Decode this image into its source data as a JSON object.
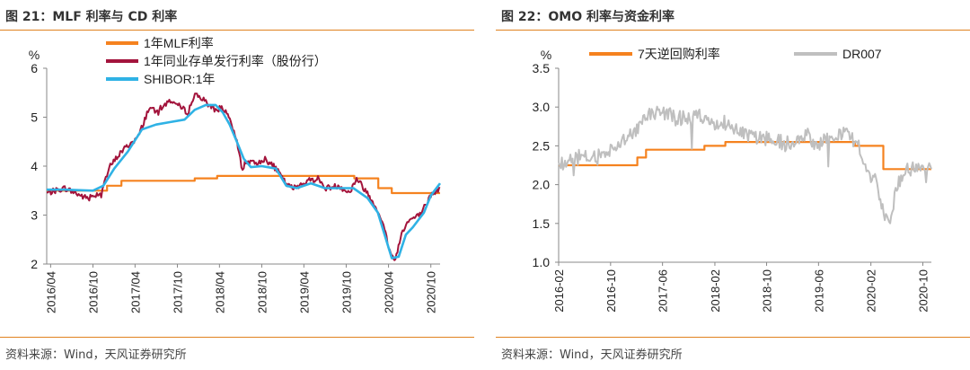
{
  "figures": [
    {
      "title": "图 21：MLF 利率与 CD 利率",
      "source": "资料来源：Wind，天风证券研究所",
      "chart_data": {
        "type": "line",
        "ylabel": "%",
        "ylim": [
          2,
          6
        ],
        "yticks": [
          2,
          3,
          4,
          5,
          6
        ],
        "x_dates": [
          "2016/04",
          "2016/10",
          "2017/04",
          "2017/10",
          "2018/04",
          "2018/10",
          "2019/04",
          "2019/10",
          "2020/04",
          "2020/10"
        ],
        "x_range": [
          "2016-03-15",
          "2020-11-10"
        ],
        "legend_position": "top",
        "series": [
          {
            "name": "1年MLF利率",
            "color": "#F5821F",
            "kind": "step",
            "points": [
              [
                "2016-03-15",
                3.5
              ],
              [
                "2016-12-01",
                3.5
              ],
              [
                "2016-12-01",
                3.6
              ],
              [
                "2017-02-01",
                3.6
              ],
              [
                "2017-02-01",
                3.7
              ],
              [
                "2017-12-15",
                3.7
              ],
              [
                "2017-12-15",
                3.75
              ],
              [
                "2018-03-22",
                3.75
              ],
              [
                "2018-03-22",
                3.8
              ],
              [
                "2019-11-05",
                3.8
              ],
              [
                "2019-11-05",
                3.75
              ],
              [
                "2020-02-17",
                3.75
              ],
              [
                "2020-02-17",
                3.55
              ],
              [
                "2020-04-15",
                3.55
              ],
              [
                "2020-04-15",
                3.45
              ],
              [
                "2020-11-10",
                3.45
              ]
            ]
          },
          {
            "name": "1年同业存单发行利率（股份行）",
            "color": "#A3143C",
            "kind": "noisy",
            "points": [
              [
                "2016-03-15",
                3.45
              ],
              [
                "2016-06-01",
                3.55
              ],
              [
                "2016-09-01",
                3.35
              ],
              [
                "2016-11-01",
                3.45
              ],
              [
                "2016-12-15",
                4.0
              ],
              [
                "2017-02-01",
                4.3
              ],
              [
                "2017-04-15",
                4.6
              ],
              [
                "2017-06-01",
                5.2
              ],
              [
                "2017-07-01",
                5.1
              ],
              [
                "2017-09-01",
                5.35
              ],
              [
                "2017-11-15",
                5.1
              ],
              [
                "2017-12-20",
                5.5
              ],
              [
                "2018-02-01",
                5.3
              ],
              [
                "2018-03-15",
                5.15
              ],
              [
                "2018-04-15",
                5.2
              ],
              [
                "2018-05-20",
                4.9
              ],
              [
                "2018-06-20",
                4.4
              ],
              [
                "2018-07-10",
                3.9
              ],
              [
                "2018-07-20",
                4.1
              ],
              [
                "2018-09-01",
                4.05
              ],
              [
                "2018-10-15",
                4.15
              ],
              [
                "2018-12-01",
                3.95
              ],
              [
                "2019-01-20",
                3.6
              ],
              [
                "2019-02-15",
                3.55
              ],
              [
                "2019-04-15",
                3.7
              ],
              [
                "2019-06-01",
                3.75
              ],
              [
                "2019-07-01",
                3.55
              ],
              [
                "2019-09-01",
                3.6
              ],
              [
                "2019-10-15",
                3.45
              ],
              [
                "2019-11-15",
                3.75
              ],
              [
                "2020-01-01",
                3.45
              ],
              [
                "2020-02-15",
                3.1
              ],
              [
                "2020-03-15",
                2.7
              ],
              [
                "2020-04-10",
                2.2
              ],
              [
                "2020-05-01",
                2.1
              ],
              [
                "2020-06-01",
                2.7
              ],
              [
                "2020-07-01",
                2.9
              ],
              [
                "2020-08-15",
                3.0
              ],
              [
                "2020-10-01",
                3.4
              ],
              [
                "2020-11-10",
                3.55
              ]
            ]
          },
          {
            "name": "SHIBOR:1年",
            "color": "#2FB2E5",
            "kind": "smooth",
            "points": [
              [
                "2016-03-15",
                3.52
              ],
              [
                "2016-06-01",
                3.52
              ],
              [
                "2016-10-01",
                3.5
              ],
              [
                "2016-11-15",
                3.6
              ],
              [
                "2017-01-01",
                3.95
              ],
              [
                "2017-03-01",
                4.3
              ],
              [
                "2017-05-01",
                4.75
              ],
              [
                "2017-07-01",
                4.85
              ],
              [
                "2017-09-01",
                4.9
              ],
              [
                "2017-11-01",
                4.95
              ],
              [
                "2017-12-15",
                5.15
              ],
              [
                "2018-02-01",
                5.25
              ],
              [
                "2018-03-15",
                5.25
              ],
              [
                "2018-04-15",
                5.1
              ],
              [
                "2018-05-15",
                4.85
              ],
              [
                "2018-06-15",
                4.5
              ],
              [
                "2018-07-15",
                4.15
              ],
              [
                "2018-08-15",
                3.98
              ],
              [
                "2018-10-01",
                4.0
              ],
              [
                "2018-12-01",
                3.95
              ],
              [
                "2019-01-15",
                3.6
              ],
              [
                "2019-03-01",
                3.55
              ],
              [
                "2019-05-01",
                3.65
              ],
              [
                "2019-07-01",
                3.55
              ],
              [
                "2019-09-01",
                3.55
              ],
              [
                "2019-11-01",
                3.55
              ],
              [
                "2020-01-01",
                3.35
              ],
              [
                "2020-02-15",
                3.05
              ],
              [
                "2020-03-15",
                2.6
              ],
              [
                "2020-04-15",
                2.12
              ],
              [
                "2020-05-15",
                2.15
              ],
              [
                "2020-06-15",
                2.6
              ],
              [
                "2020-07-15",
                2.75
              ],
              [
                "2020-09-01",
                3.05
              ],
              [
                "2020-10-01",
                3.4
              ],
              [
                "2020-11-10",
                3.65
              ]
            ]
          }
        ]
      }
    },
    {
      "title": "图 22：OMO 利率与资金利率",
      "source": "资料来源：Wind，天风证券研究所",
      "chart_data": {
        "type": "line",
        "ylabel": "%",
        "ylim": [
          1.0,
          3.5
        ],
        "yticks": [
          1.0,
          1.5,
          2.0,
          2.5,
          3.0,
          3.5
        ],
        "ytick_labels": [
          "1.0",
          "1.5",
          "2.0",
          "2.5",
          "3.0",
          "3.5"
        ],
        "x_dates": [
          "2016-02",
          "2016-10",
          "2017-06",
          "2018-02",
          "2018-10",
          "2019-06",
          "2020-02",
          "2020-10"
        ],
        "x_range": [
          "2016-02-01",
          "2020-11-10"
        ],
        "legend_position": "top",
        "series": [
          {
            "name": "7天逆回购利率",
            "color": "#F5821F",
            "kind": "step",
            "points": [
              [
                "2016-02-01",
                2.25
              ],
              [
                "2017-02-03",
                2.25
              ],
              [
                "2017-02-03",
                2.35
              ],
              [
                "2017-03-16",
                2.35
              ],
              [
                "2017-03-16",
                2.45
              ],
              [
                "2017-12-14",
                2.45
              ],
              [
                "2017-12-14",
                2.5
              ],
              [
                "2018-03-22",
                2.5
              ],
              [
                "2018-03-22",
                2.55
              ],
              [
                "2019-11-18",
                2.55
              ],
              [
                "2019-11-18",
                2.5
              ],
              [
                "2020-03-30",
                2.5
              ],
              [
                "2020-03-30",
                2.2
              ],
              [
                "2020-11-10",
                2.2
              ]
            ]
          },
          {
            "name": "DR007",
            "color": "#BFBFBF",
            "kind": "noisy",
            "points": [
              [
                "2016-02-01",
                2.25
              ],
              [
                "2016-05-01",
                2.35
              ],
              [
                "2016-08-01",
                2.35
              ],
              [
                "2016-10-01",
                2.45
              ],
              [
                "2016-12-01",
                2.6
              ],
              [
                "2017-02-01",
                2.7
              ],
              [
                "2017-04-01",
                2.9
              ],
              [
                "2017-06-01",
                2.95
              ],
              [
                "2017-08-01",
                2.85
              ],
              [
                "2017-10-01",
                2.85
              ],
              [
                "2017-12-01",
                2.9
              ],
              [
                "2018-02-01",
                2.8
              ],
              [
                "2018-04-01",
                2.8
              ],
              [
                "2018-06-01",
                2.7
              ],
              [
                "2018-08-01",
                2.6
              ],
              [
                "2018-10-01",
                2.6
              ],
              [
                "2018-12-01",
                2.55
              ],
              [
                "2019-02-01",
                2.55
              ],
              [
                "2019-04-01",
                2.65
              ],
              [
                "2019-06-01",
                2.5
              ],
              [
                "2019-08-01",
                2.65
              ],
              [
                "2019-10-01",
                2.65
              ],
              [
                "2019-12-01",
                2.55
              ],
              [
                "2020-02-01",
                2.1
              ],
              [
                "2020-03-01",
                2.05
              ],
              [
                "2020-04-01",
                1.6
              ],
              [
                "2020-05-01",
                1.5
              ],
              [
                "2020-06-01",
                2.0
              ],
              [
                "2020-07-01",
                2.15
              ],
              [
                "2020-08-15",
                2.2
              ],
              [
                "2020-10-01",
                2.25
              ],
              [
                "2020-11-10",
                2.2
              ]
            ]
          }
        ]
      }
    }
  ]
}
